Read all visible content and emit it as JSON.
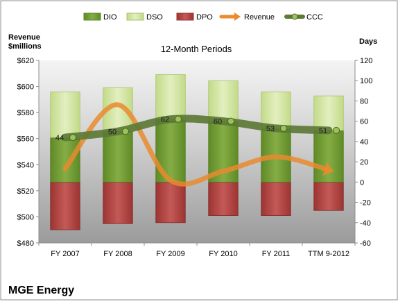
{
  "chart_data": {
    "type": "bar",
    "title": "12-Month Periods",
    "company": "MGE Energy",
    "left_axis_label": [
      "Revenue",
      "$millions"
    ],
    "right_axis_label": "Days",
    "left_ylim": [
      480,
      620
    ],
    "left_ticks": [
      "$480",
      "$500",
      "$520",
      "$540",
      "$560",
      "$580",
      "$600",
      "$620"
    ],
    "right_ylim": [
      -60,
      120
    ],
    "right_ticks": [
      "-60",
      "-40",
      "-20",
      "0",
      "20",
      "40",
      "60",
      "80",
      "100",
      "120"
    ],
    "categories": [
      "FY 2007",
      "FY 2008",
      "FY 2009",
      "FY 2010",
      "FY 2011",
      "TTM 9-2012"
    ],
    "legend_position": "top",
    "grid": false,
    "series": [
      {
        "name": "DIO",
        "axis": "right",
        "color": "#6f9a2e",
        "values": [
          44,
          50,
          62,
          60,
          53,
          51
        ]
      },
      {
        "name": "DSO",
        "axis": "right",
        "color": "#d6e8a8",
        "values": [
          45,
          43,
          44,
          40,
          36,
          34
        ]
      },
      {
        "name": "DPO",
        "axis": "right",
        "color": "#b84a48",
        "values": [
          -47,
          -41,
          -40,
          -33,
          -33,
          -28
        ]
      },
      {
        "name": "Revenue",
        "axis": "left",
        "color": "#e98b2e",
        "values": [
          537,
          586,
          528,
          535,
          546,
          536
        ]
      },
      {
        "name": "CCC",
        "axis": "right",
        "color": "#5c7a36",
        "values": [
          44,
          50,
          62,
          60,
          53,
          51
        ]
      }
    ],
    "ccc_labels": [
      "44",
      "50",
      "62",
      "60",
      "53",
      "51"
    ]
  }
}
